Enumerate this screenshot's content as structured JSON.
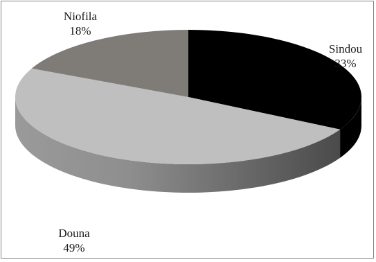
{
  "chart_data": {
    "type": "pie",
    "style": "3d",
    "title": "",
    "categories": [
      "Sindou",
      "Douna",
      "Niofila"
    ],
    "values": [
      33,
      49,
      18
    ],
    "value_labels": [
      "33%",
      "49%",
      "18%"
    ],
    "colors": [
      "#000000",
      "#bfbfbf",
      "#7f7b77"
    ],
    "legend": "none"
  }
}
